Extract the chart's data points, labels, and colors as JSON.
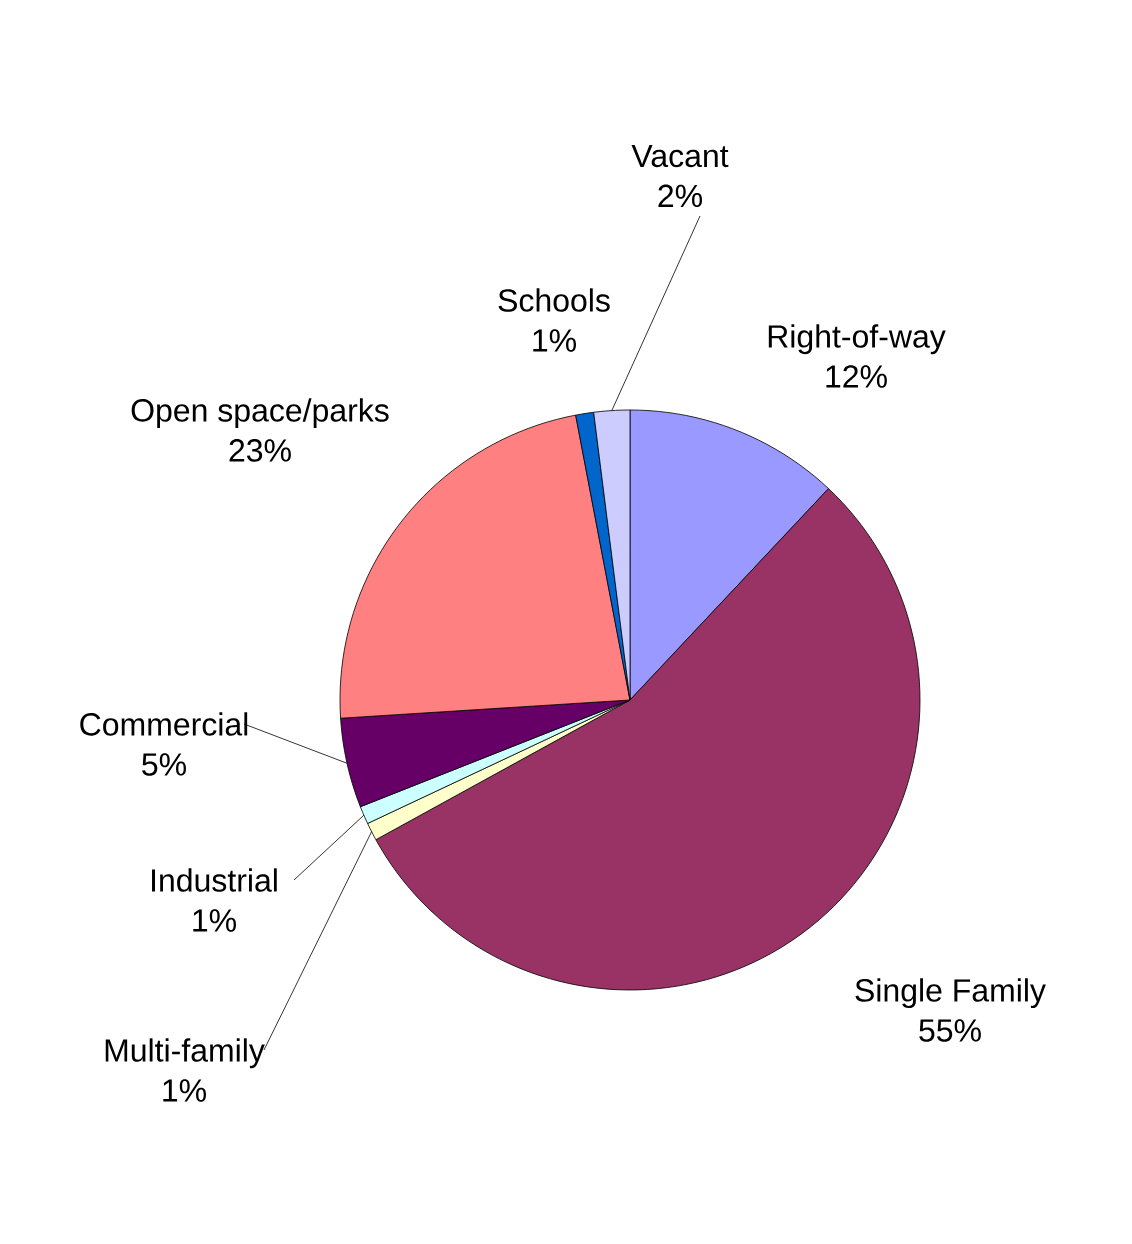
{
  "chart_data": {
    "type": "pie",
    "categories": [
      "Right-of-way",
      "Single Family",
      "Multi-family",
      "Industrial",
      "Commercial",
      "Open space/parks",
      "Schools",
      "Vacant"
    ],
    "values": [
      12,
      55,
      1,
      1,
      5,
      23,
      1,
      2
    ],
    "value_labels": [
      "12%",
      "55%",
      "1%",
      "1%",
      "5%",
      "23%",
      "1%",
      "2%"
    ],
    "colors": [
      "#9999ff",
      "#993366",
      "#ffffcc",
      "#ccffff",
      "#660066",
      "#ff8080",
      "#0066cc",
      "#ccccff"
    ]
  }
}
